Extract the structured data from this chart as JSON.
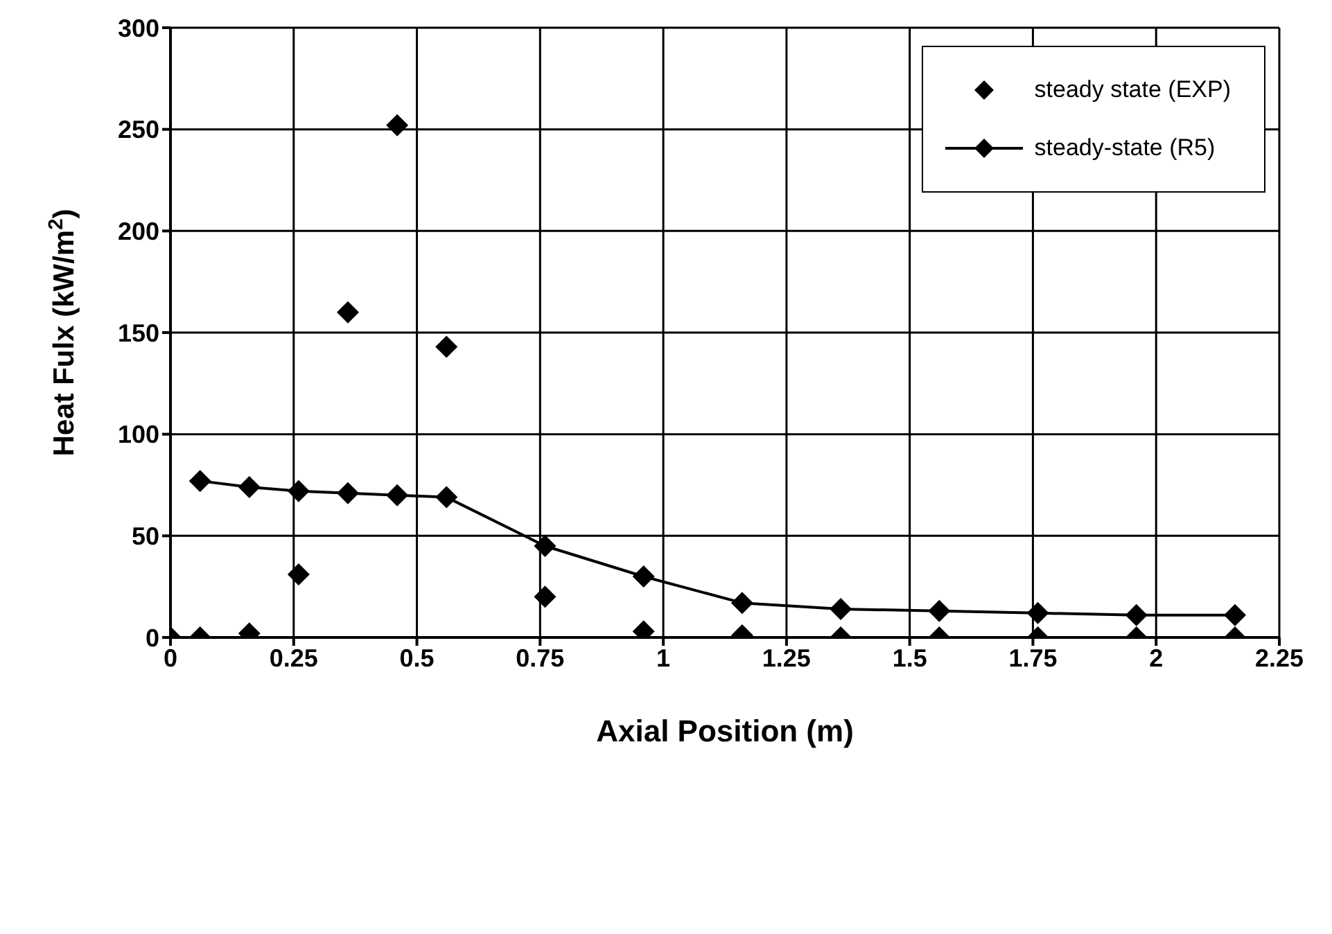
{
  "chart_data": {
    "type": "line",
    "xlabel": "Axial Position (m)",
    "ylabel": "Heat Fulx (kW/m$^{2}$)",
    "x": [
      0,
      0.06,
      0.16,
      0.26,
      0.36,
      0.46,
      0.56,
      0.76,
      0.96,
      1.16,
      1.36,
      1.56,
      1.76,
      1.96,
      2.16
    ],
    "series": [
      {
        "name": "steady state (EXP)",
        "type": "scatter",
        "color": "#000000",
        "values": [
          0,
          0,
          2,
          31,
          160,
          252,
          143,
          20,
          3,
          1,
          0,
          0,
          0,
          0,
          0
        ]
      },
      {
        "name": "steady-state (R5)",
        "color": "#000000",
        "x": [
          0.06,
          0.16,
          0.26,
          0.36,
          0.46,
          0.56,
          0.76,
          0.96,
          1.16,
          1.36,
          1.56,
          1.76,
          1.96,
          2.16
        ],
        "values": [
          77,
          74,
          72,
          71,
          70,
          69,
          45,
          30,
          17,
          14,
          13,
          12,
          11,
          11
        ]
      }
    ],
    "xlim": [
      0,
      2.25
    ],
    "xticks": [
      0,
      0.25,
      0.5,
      0.75,
      1,
      1.25,
      1.5,
      1.75,
      2,
      2.25
    ],
    "ylim": [
      0,
      300
    ],
    "yticks": [
      0,
      50,
      100,
      150,
      200,
      250,
      300
    ],
    "grid": true,
    "legend": "top right",
    "marker": "diamond",
    "line_style": "solid"
  }
}
